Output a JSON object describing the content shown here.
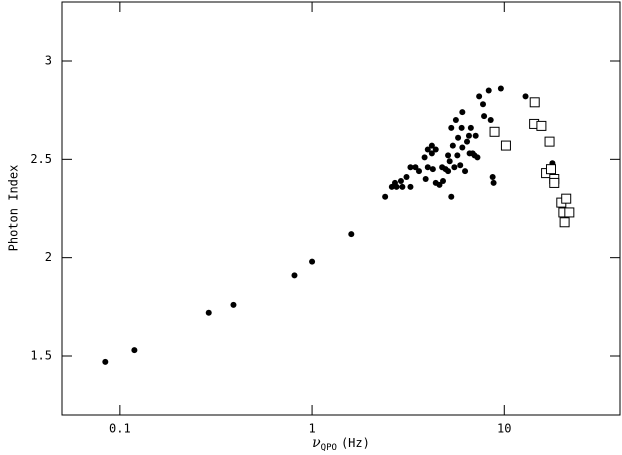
{
  "chart_data": {
    "type": "scatter",
    "x_label": {
      "symbol": "ν",
      "subscript": "QPO",
      "unit": "(Hz)"
    },
    "y_label": "Photon Index",
    "x_log": true,
    "xlim": [
      0.05,
      40
    ],
    "xticks": [
      0.1,
      1,
      10
    ],
    "ylim": [
      1.2,
      3.3
    ],
    "yticks": [
      1.5,
      2,
      2.5,
      3
    ],
    "series": [
      {
        "marker": "filled",
        "color": "#000000",
        "x": [
          0.084,
          0.119,
          0.29,
          0.39,
          0.81,
          1.0,
          1.6,
          2.4,
          2.6,
          2.7,
          2.75,
          2.9,
          2.95,
          3.1,
          3.25,
          3.25,
          3.45,
          3.6,
          3.85,
          3.9,
          4.0,
          4.0,
          4.2,
          4.2,
          4.25,
          4.4,
          4.4,
          4.6,
          4.75,
          4.8,
          4.95,
          5.1,
          5.1,
          5.2,
          5.3,
          5.3,
          5.4,
          5.5,
          5.6,
          5.7,
          5.75,
          5.9,
          6.0,
          6.05,
          6.05,
          6.25,
          6.4,
          6.55,
          6.6,
          6.7,
          6.85,
          7.0,
          7.1,
          7.25,
          7.4,
          7.75,
          7.85,
          8.5,
          8.3,
          8.7,
          8.8,
          9.6,
          12.9,
          17.8
        ],
        "values": [
          1.47,
          1.53,
          1.72,
          1.76,
          1.91,
          1.98,
          2.12,
          2.31,
          2.36,
          2.38,
          2.36,
          2.39,
          2.36,
          2.41,
          2.36,
          2.46,
          2.46,
          2.44,
          2.51,
          2.4,
          2.55,
          2.46,
          2.57,
          2.53,
          2.45,
          2.38,
          2.55,
          2.37,
          2.46,
          2.39,
          2.45,
          2.44,
          2.52,
          2.49,
          2.66,
          2.31,
          2.57,
          2.46,
          2.7,
          2.52,
          2.61,
          2.47,
          2.66,
          2.56,
          2.74,
          2.44,
          2.59,
          2.62,
          2.53,
          2.66,
          2.53,
          2.52,
          2.62,
          2.51,
          2.82,
          2.78,
          2.72,
          2.7,
          2.85,
          2.41,
          2.38,
          2.86,
          2.82,
          2.48
        ]
      },
      {
        "marker": "open-square",
        "color": "#000000",
        "x": [
          14.4,
          14.3,
          15.6,
          8.9,
          10.2,
          17.2,
          16.5,
          17.5,
          18.2,
          18.2,
          19.8,
          21,
          20.3,
          21.8,
          20.6
        ],
        "values": [
          2.79,
          2.68,
          2.67,
          2.64,
          2.57,
          2.59,
          2.43,
          2.45,
          2.4,
          2.38,
          2.28,
          2.3,
          2.23,
          2.23,
          2.18
        ]
      }
    ]
  }
}
